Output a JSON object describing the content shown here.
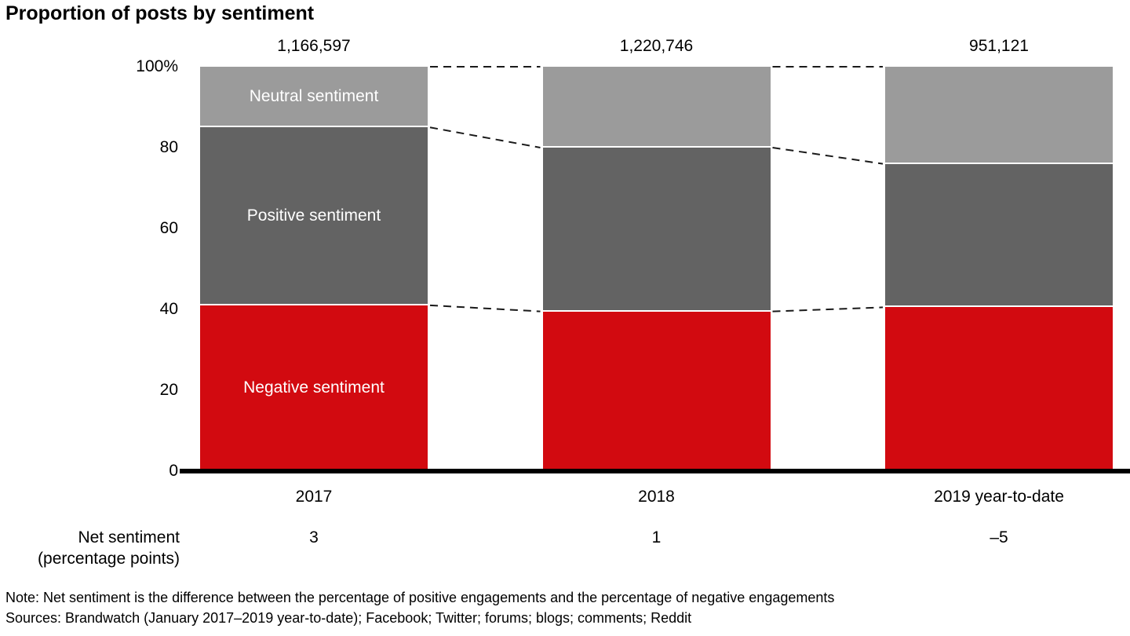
{
  "chart_data": {
    "type": "bar",
    "stacked": true,
    "title": "Proportion of posts by sentiment",
    "categories": [
      "2017",
      "2018",
      "2019 year-to-date"
    ],
    "totals": [
      "1,166,597",
      "1,220,746",
      "951,121"
    ],
    "series": [
      {
        "name": "Negative sentiment",
        "color": "#d20a10",
        "text_color": "#ffffff",
        "values": [
          41,
          39.5,
          40.5
        ]
      },
      {
        "name": "Positive sentiment",
        "color": "#636363",
        "text_color": "#ffffff",
        "values": [
          44,
          40.5,
          35.5
        ]
      },
      {
        "name": "Neutral sentiment",
        "color": "#9b9b9b",
        "text_color": "#ffffff",
        "values": [
          15,
          20,
          24
        ]
      }
    ],
    "y_axis": {
      "min": 0,
      "max": 100,
      "ticks": [
        {
          "label": "100%",
          "value": 100
        },
        {
          "label": "80",
          "value": 80
        },
        {
          "label": "60",
          "value": 60
        },
        {
          "label": "40",
          "value": 40
        },
        {
          "label": "20",
          "value": 20
        },
        {
          "label": "0",
          "value": 0
        }
      ]
    },
    "net_sentiment": {
      "label": [
        "Net sentiment",
        "(percentage points)"
      ],
      "values": [
        "3",
        "1",
        "–5"
      ]
    }
  },
  "notes": {
    "note": "Note: Net sentiment is the difference between the percentage of positive engagements and the percentage of negative engagements",
    "sources": "Sources: Brandwatch (January 2017–2019 year-to-date); Facebook; Twitter; forums; blogs; comments; Reddit"
  }
}
